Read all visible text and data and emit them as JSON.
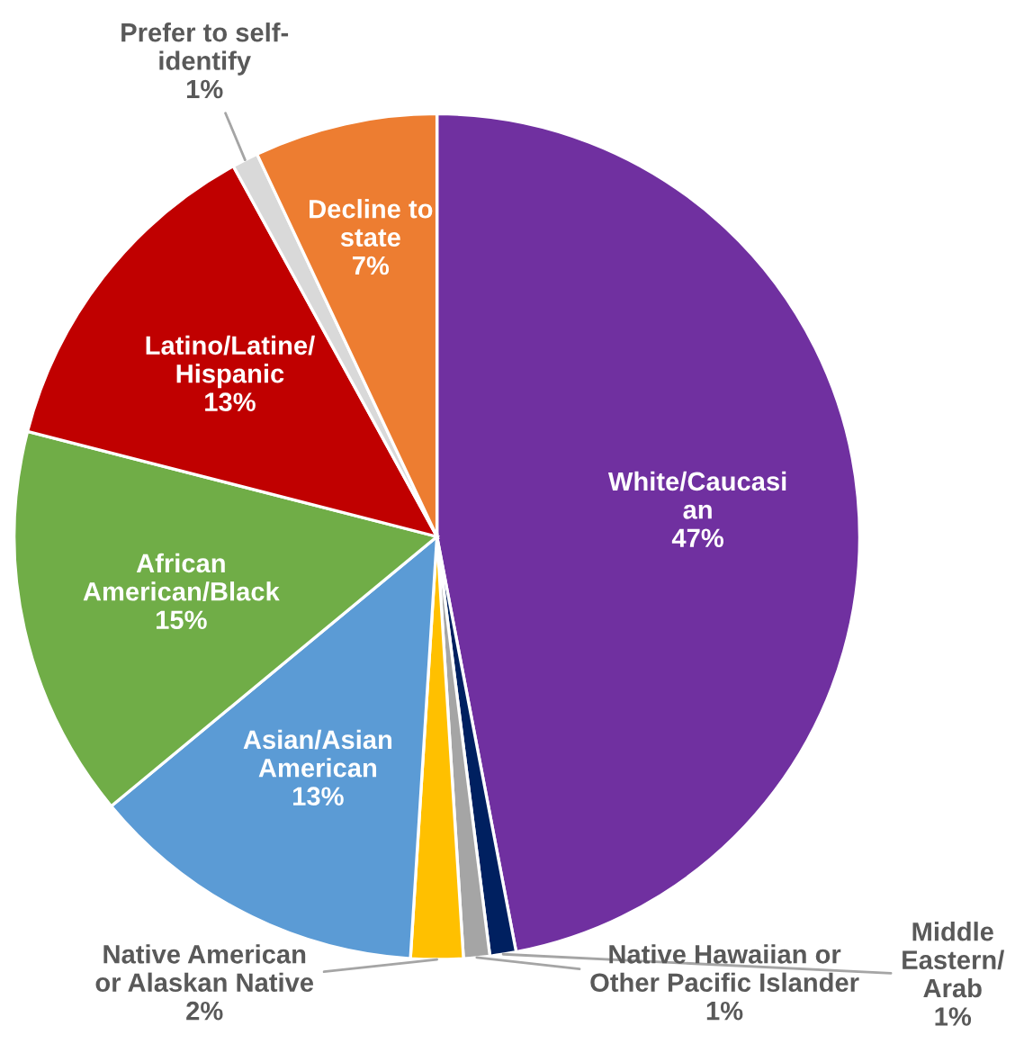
{
  "chart_data": {
    "type": "pie",
    "categories": [
      "White/Caucasi\nan",
      "Middle\nEastern/\nArab",
      "Native Hawaiian or\nOther Pacific Islander",
      "Native American\nor Alaskan Native",
      "Asian/Asian\nAmerican",
      "African\nAmerican/Black",
      "Latino/Latine/\nHispanic",
      "Prefer to self-\nidentify",
      "Decline to\nstate"
    ],
    "values": [
      47,
      1,
      1,
      2,
      13,
      15,
      13,
      1,
      7
    ],
    "colors": [
      "#7030a0",
      "#002060",
      "#a5a5a5",
      "#ffc000",
      "#5b9bd5",
      "#70ad47",
      "#c00000",
      "#d9d9d9",
      "#ed7d31"
    ],
    "value_labels": [
      "47%",
      "1%",
      "1%",
      "2%",
      "13%",
      "15%",
      "13%",
      "1%",
      "7%"
    ],
    "legend": false
  }
}
